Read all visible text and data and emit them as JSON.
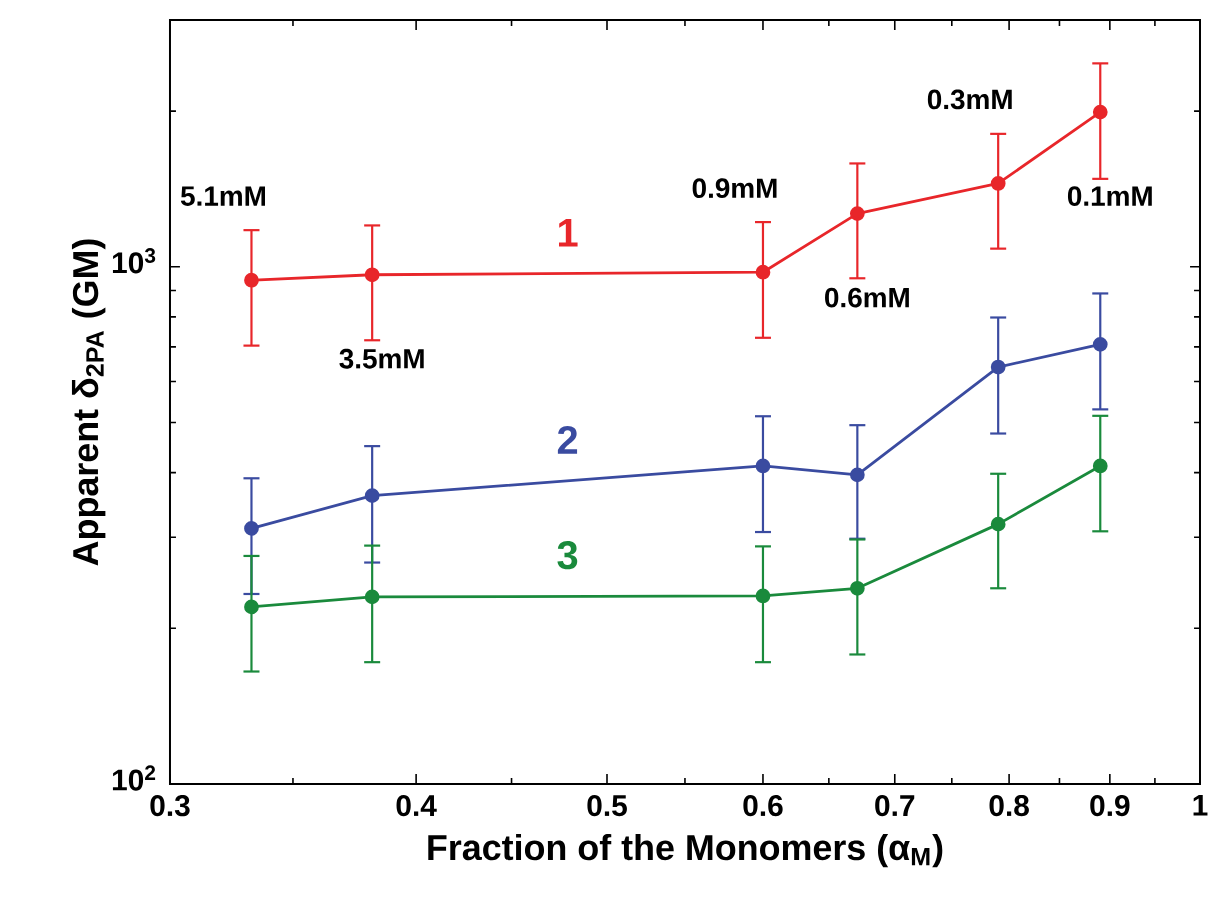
{
  "chart_data": {
    "type": "line",
    "xlabel": "Fraction of the Monomers (α$_{M}$)",
    "ylabel": "Apparent δ$_{2PA}$ (GM)",
    "x": [
      0.33,
      0.38,
      0.6,
      0.67,
      0.79,
      0.89
    ],
    "series": [
      {
        "name": "1",
        "color": "#e8262a",
        "values": [
          942,
          965,
          976,
          1267,
          1449,
          1991
        ],
        "errors": [
          [
            704,
            1177
          ],
          [
            721,
            1202
          ],
          [
            729,
            1220
          ],
          [
            950,
            1584
          ],
          [
            1084,
            1807
          ],
          [
            1479,
            2473
          ]
        ]
      },
      {
        "name": "2",
        "color": "#3a4ba0",
        "values": [
          312,
          361,
          412,
          396,
          640,
          708
        ],
        "errors": [
          [
            233,
            390
          ],
          [
            268,
            450
          ],
          [
            307,
            514
          ],
          [
            298,
            494
          ],
          [
            476,
            798
          ],
          [
            530,
            888
          ]
        ]
      },
      {
        "name": "3",
        "color": "#1a8a3c",
        "values": [
          220,
          230,
          231,
          239,
          318,
          412
        ],
        "errors": [
          [
            165,
            276
          ],
          [
            172,
            289
          ],
          [
            172,
            288
          ],
          [
            178,
            297
          ],
          [
            239,
            398
          ],
          [
            308,
            515
          ]
        ]
      }
    ],
    "annotations": [
      {
        "text": "5.1mM",
        "x": 0.33,
        "y": 942
      },
      {
        "text": "3.5mM",
        "x": 0.38,
        "y": 965
      },
      {
        "text": "0.9mM",
        "x": 0.6,
        "y": 976
      },
      {
        "text": "0.6mM",
        "x": 0.67,
        "y": 1267
      },
      {
        "text": "0.3mM",
        "x": 0.79,
        "y": 1449
      },
      {
        "text": "0.1mM",
        "x": 0.89,
        "y": 1991
      }
    ],
    "log": "xy",
    "xlim": [
      0.3,
      1
    ],
    "ylim": [
      100,
      3000
    ],
    "xticks": [
      0.3,
      0.4,
      0.5,
      0.6,
      0.7,
      0.8,
      0.9,
      1
    ],
    "yticks": [
      {
        "value": 100,
        "label": "10$^{2}$"
      },
      {
        "value": 1000,
        "label": "10$^{3}$"
      }
    ],
    "marker": "circle",
    "line_style": "solid",
    "grid": false
  }
}
